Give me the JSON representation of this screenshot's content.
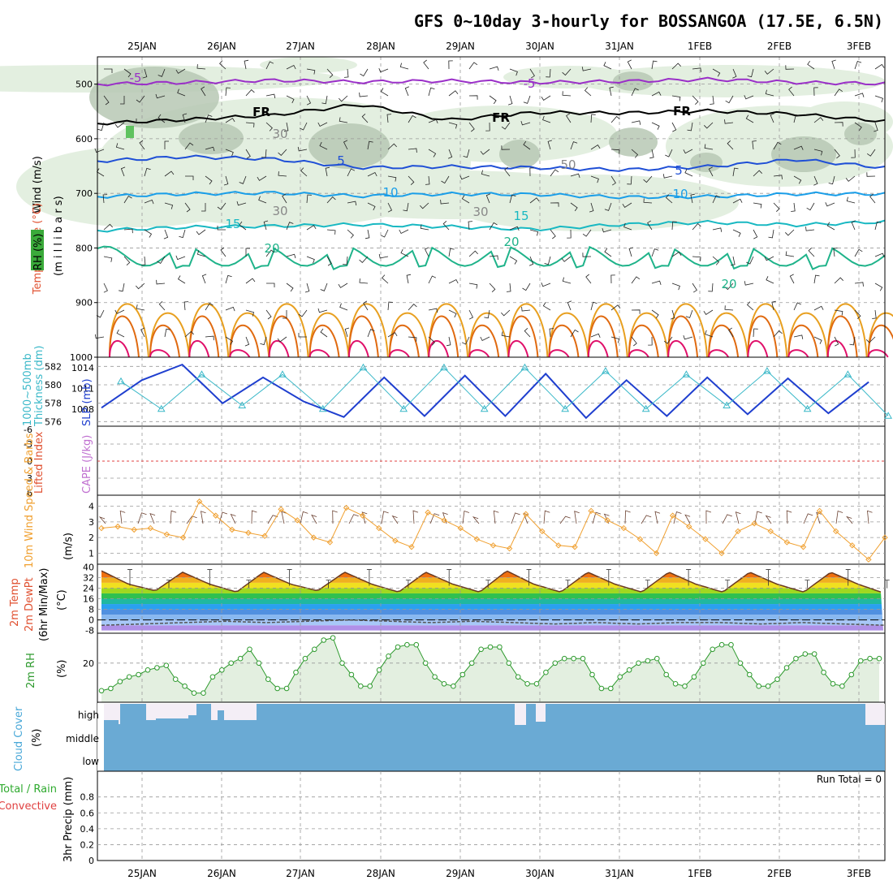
{
  "title": "GFS 0~10day 3-hourly for BOSSANGOA (17.5E, 6.5N)",
  "colors": {
    "rh_fill": "#e3efe0",
    "rh_fill_dark": "#b7c8b4",
    "temp_neg": "#9a2fc8",
    "temp_fr": "#000000",
    "temp_5": "#1f4fd6",
    "temp_10": "#1a9ee8",
    "temp_15": "#18b8c2",
    "temp_20": "#1fb38a",
    "temp_warm1": "#e8a020",
    "temp_warm2": "#e06a10",
    "temp_hot": "#e0106a",
    "thickness": "#1f3fcf",
    "slp": "#3ab8c8",
    "wind10": "#f0a030",
    "rh2m": "#2e9a2e",
    "cloud": "#6aaad4",
    "cloud_gap": "#f4eef6",
    "lifted_zero": "#e04040"
  },
  "chart_data": [
    {
      "type": "line",
      "panel": "upper-air",
      "x": [
        "25JAN",
        "26JAN",
        "27JAN",
        "28JAN",
        "29JAN",
        "30JAN",
        "31JAN",
        "1FEB",
        "2FEB",
        "3FEB"
      ],
      "ylabels": [
        "Wind (m/s)",
        "Temperature (°C)",
        "RH (%)",
        "(m i l l i b a r s)"
      ],
      "ytick_labels": [
        "500",
        "600",
        "700",
        "800",
        "900",
        "1000"
      ],
      "ylim": [
        450,
        1000
      ],
      "contour_labels": [
        "-5",
        "-5",
        "FR",
        "FR",
        "FR",
        "5",
        "5",
        "10",
        "10",
        "15",
        "15",
        "20",
        "20",
        "20",
        "30",
        "30",
        "30",
        "50"
      ],
      "series": [
        {
          "name": "-5",
          "values": [
            500,
            497,
            493,
            496,
            494,
            497,
            495,
            491,
            497,
            499
          ]
        },
        {
          "name": "FR",
          "values": [
            572,
            565,
            557,
            537,
            566,
            552,
            553,
            549,
            555,
            568
          ]
        },
        {
          "name": "5",
          "values": [
            641,
            633,
            637,
            653,
            651,
            653,
            657,
            651,
            638,
            653
          ]
        },
        {
          "name": "10",
          "values": [
            706,
            701,
            699,
            705,
            701,
            702,
            707,
            706,
            701,
            701
          ]
        },
        {
          "name": "15",
          "values": [
            768,
            762,
            760,
            757,
            761,
            766,
            757,
            753,
            758,
            752
          ]
        }
      ]
    },
    {
      "type": "line",
      "panel": "thickness-slp",
      "ylabels": [
        "1000~500mb",
        "Thickness (dm)",
        "SLP (mb)"
      ],
      "ytick_labels_left": [
        "582",
        "580",
        "578",
        "576"
      ],
      "ytick_labels_right": [
        "1014",
        "1011",
        "1008"
      ],
      "series": [
        {
          "name": "Thickness",
          "values": [
            577.5,
            580.5,
            582.2,
            578.0,
            580.8,
            578.2,
            576.5,
            580.8,
            576.6,
            581.0,
            576.6,
            581.2,
            576.4,
            580.5,
            576.6,
            580.8,
            576.8,
            580.7,
            576.9,
            580.3
          ]
        },
        {
          "name": "SLP",
          "values": [
            1012,
            1008,
            1013,
            1008.5,
            1013,
            1008,
            1014,
            1008,
            1014,
            1008,
            1014,
            1008,
            1013.5,
            1008,
            1013,
            1008.5,
            1013.5,
            1008,
            1013,
            1007
          ]
        }
      ]
    },
    {
      "type": "line",
      "panel": "cape-lifted",
      "ylabels": [
        "Lifted Index",
        "CAPE (J/kg)"
      ],
      "ytick_labels": [
        "-6",
        "-3",
        "0",
        "3",
        "6"
      ]
    },
    {
      "type": "line",
      "panel": "wind10m",
      "ylabels": [
        "10m Wind Speed & Barbs",
        "(m/s)"
      ],
      "ytick_labels": [
        "4",
        "3",
        "2",
        "1"
      ],
      "series": [
        {
          "name": "10m Wind Speed",
          "values": [
            2.6,
            2.7,
            2.5,
            2.6,
            2.2,
            2.0,
            4.3,
            3.4,
            2.5,
            2.3,
            2.1,
            3.8,
            3.1,
            2.0,
            1.7,
            3.9,
            3.4,
            2.6,
            1.8,
            1.4,
            3.6,
            3.1,
            2.6,
            1.9,
            1.5,
            1.3,
            3.5,
            2.4,
            1.5,
            1.4,
            3.7,
            3.1,
            2.6,
            1.9,
            1.0,
            3.4,
            2.7,
            1.9,
            1.0,
            2.4,
            2.9,
            2.4,
            1.7,
            1.4,
            3.7,
            2.4,
            1.5,
            0.6,
            2.0
          ]
        }
      ]
    },
    {
      "type": "area",
      "panel": "temp2m",
      "ylabels": [
        "2m Temp",
        "2m DewPt",
        "(6hr Min/Max)",
        "(°C)"
      ],
      "ytick_labels": [
        "40",
        "32",
        "24",
        "16",
        "8",
        "0",
        "-8"
      ],
      "series": [
        {
          "name": "2m Temp",
          "values": [
            37,
            27,
            22,
            36,
            27,
            21,
            36,
            27,
            22,
            36,
            27,
            21,
            36,
            27,
            21,
            37,
            27,
            21,
            36,
            27,
            21,
            36,
            27,
            21,
            36,
            27,
            21,
            36,
            27,
            20
          ]
        },
        {
          "name": "2m DewPt",
          "values": [
            -4,
            -3,
            -2,
            -1,
            -2,
            -1,
            0,
            -1,
            -2,
            -1,
            -2,
            -3,
            -2,
            -3,
            -2,
            -2,
            -3,
            -2,
            -3,
            -4
          ]
        }
      ]
    },
    {
      "type": "area",
      "panel": "rh2m",
      "ylabels": [
        "2m RH",
        "(%)"
      ],
      "ytick_labels": [
        "20"
      ],
      "series": [
        {
          "name": "2m RH",
          "values": [
            8,
            9,
            12,
            14,
            15,
            17,
            18,
            19,
            13,
            10,
            7,
            7,
            14,
            17,
            20,
            22,
            26,
            20,
            13,
            9,
            9,
            16,
            22,
            26,
            30,
            31,
            20,
            15,
            10,
            10,
            17,
            23,
            27,
            28,
            28,
            20,
            14,
            11,
            10,
            15,
            20,
            26,
            27,
            27,
            20,
            14,
            11,
            11,
            16,
            20,
            22,
            22,
            22,
            15,
            9,
            9,
            14,
            17,
            20,
            21,
            22,
            15,
            11,
            10,
            14,
            20,
            26,
            28,
            28,
            20,
            15,
            10,
            10,
            13,
            18,
            22,
            24,
            24,
            16,
            11,
            10,
            15,
            21,
            22,
            22
          ]
        }
      ]
    },
    {
      "type": "bar",
      "panel": "cloud",
      "ylabels": [
        "Cloud Cover",
        "(%)"
      ],
      "ytick_labels": [
        "high",
        "middle",
        "low"
      ]
    },
    {
      "type": "bar",
      "panel": "precip",
      "ylabels": [
        "Total / Rain",
        "Convective",
        "3hr Precip (mm)"
      ],
      "ytick_labels": [
        "0.8",
        "0.6",
        "0.4",
        "0.2",
        "0"
      ],
      "ylim": [
        0,
        1
      ],
      "run_total": "Run Total = 0"
    }
  ]
}
